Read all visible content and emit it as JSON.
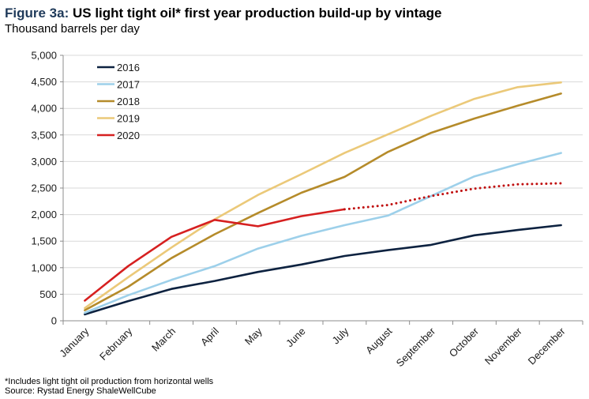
{
  "header": {
    "figure_label": "Figure 3a:",
    "title": "US light tight oil* first year production build-up by vintage",
    "subtitle": "Thousand barrels per day"
  },
  "footer": {
    "footnote": "*Includes light tight oil production from horizontal wells",
    "source": "Source: Rystad Energy ShaleWellCube"
  },
  "chart_data": {
    "type": "line",
    "title": "US light tight oil* first year production build-up by vintage",
    "ylabel": "Thousand barrels per day",
    "ylim": [
      0,
      5000
    ],
    "yticks": [
      0,
      500,
      1000,
      1500,
      2000,
      2500,
      3000,
      3500,
      4000,
      4500,
      5000
    ],
    "ytick_labels": [
      "0",
      "500",
      "1,000",
      "1,500",
      "2,000",
      "2,500",
      "3,000",
      "3,500",
      "4,000",
      "4,500",
      "5,000"
    ],
    "grid": true,
    "legend_position": "top-left",
    "categories": [
      "January",
      "February",
      "March",
      "April",
      "May",
      "June",
      "July",
      "August",
      "September",
      "October",
      "November",
      "December"
    ],
    "series": [
      {
        "name": "2016",
        "color": "#0d2240",
        "style": "solid",
        "values": [
          120,
          370,
          600,
          750,
          920,
          1060,
          1220,
          1330,
          1430,
          1610,
          1710,
          1800
        ]
      },
      {
        "name": "2017",
        "color": "#9dd0ea",
        "style": "solid",
        "values": [
          150,
          480,
          770,
          1030,
          1360,
          1600,
          1800,
          1980,
          2350,
          2720,
          2950,
          3160
        ]
      },
      {
        "name": "2018",
        "color": "#b58b2a",
        "style": "solid",
        "values": [
          200,
          640,
          1180,
          1630,
          2030,
          2410,
          2710,
          3180,
          3540,
          3810,
          4050,
          4280
        ]
      },
      {
        "name": "2019",
        "color": "#ebc979",
        "style": "solid",
        "values": [
          240,
          820,
          1380,
          1910,
          2370,
          2760,
          3160,
          3510,
          3860,
          4180,
          4400,
          4490
        ]
      },
      {
        "name": "2020",
        "color": "#d62020",
        "style": "solid",
        "forecast_color": "#c01010",
        "values": [
          380,
          1030,
          1580,
          1900,
          1780,
          1970,
          2100,
          null,
          null,
          null,
          null,
          null
        ],
        "forecast": [
          null,
          null,
          null,
          null,
          null,
          null,
          2100,
          2180,
          2350,
          2490,
          2570,
          2590
        ]
      }
    ]
  }
}
